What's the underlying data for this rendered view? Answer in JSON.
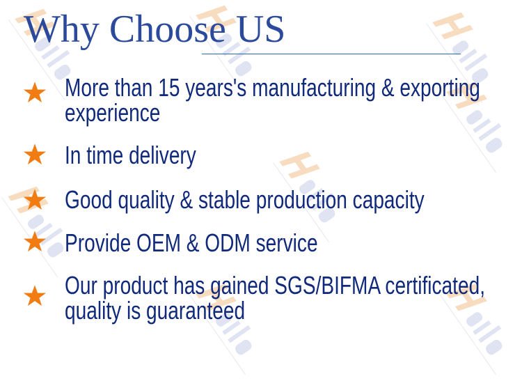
{
  "watermark": "Haits",
  "title": "Why Choose US",
  "colors": {
    "title": "#2c4a9c",
    "text": "#10297a",
    "star": "#f07c12",
    "rule": "#2a6aa8"
  },
  "items": [
    {
      "icon": "star-icon",
      "lines": [
        "More than 15 years's manufacturing & exporting",
        "experience"
      ]
    },
    {
      "icon": "star-icon",
      "lines": [
        "In time delivery"
      ]
    },
    {
      "icon": "star-icon",
      "lines": [
        "Good quality & stable production capacity"
      ]
    },
    {
      "icon": "star-icon",
      "lines": [
        "Provide OEM & ODM service"
      ]
    },
    {
      "icon": "star-icon",
      "lines": [
        "Our product has gained SGS/BIFMA certificated,",
        "quality is guaranteed"
      ]
    }
  ]
}
